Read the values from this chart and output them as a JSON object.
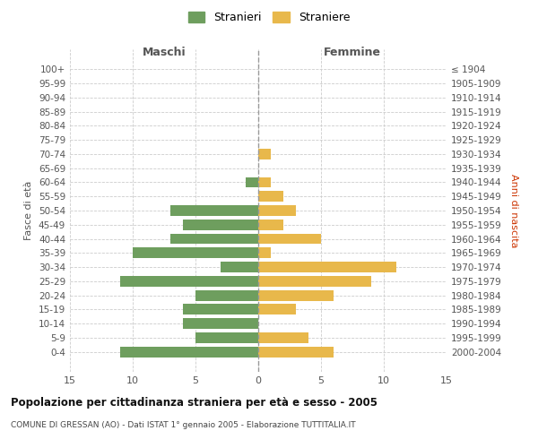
{
  "age_groups": [
    "100+",
    "95-99",
    "90-94",
    "85-89",
    "80-84",
    "75-79",
    "70-74",
    "65-69",
    "60-64",
    "55-59",
    "50-54",
    "45-49",
    "40-44",
    "35-39",
    "30-34",
    "25-29",
    "20-24",
    "15-19",
    "10-14",
    "5-9",
    "0-4"
  ],
  "birth_years": [
    "≤ 1904",
    "1905-1909",
    "1910-1914",
    "1915-1919",
    "1920-1924",
    "1925-1929",
    "1930-1934",
    "1935-1939",
    "1940-1944",
    "1945-1949",
    "1950-1954",
    "1955-1959",
    "1960-1964",
    "1965-1969",
    "1970-1974",
    "1975-1979",
    "1980-1984",
    "1985-1989",
    "1990-1994",
    "1995-1999",
    "2000-2004"
  ],
  "males": [
    0,
    0,
    0,
    0,
    0,
    0,
    0,
    0,
    1,
    0,
    7,
    6,
    7,
    10,
    3,
    11,
    5,
    6,
    6,
    5,
    11
  ],
  "females": [
    0,
    0,
    0,
    0,
    0,
    0,
    1,
    0,
    1,
    2,
    3,
    2,
    5,
    1,
    11,
    9,
    6,
    3,
    0,
    4,
    6
  ],
  "male_color": "#6e9e5e",
  "female_color": "#e8b84b",
  "background_color": "#ffffff",
  "grid_color": "#cccccc",
  "title": "Popolazione per cittadinanza straniera per età e sesso - 2005",
  "subtitle": "COMUNE DI GRESSAN (AO) - Dati ISTAT 1° gennaio 2005 - Elaborazione TUTTITALIA.IT",
  "ylabel_left": "Fasce di età",
  "ylabel_right": "Anni di nascita",
  "xlabel_left": "Maschi",
  "xlabel_right": "Femmine",
  "legend_male": "Stranieri",
  "legend_female": "Straniere",
  "xlim": 15
}
